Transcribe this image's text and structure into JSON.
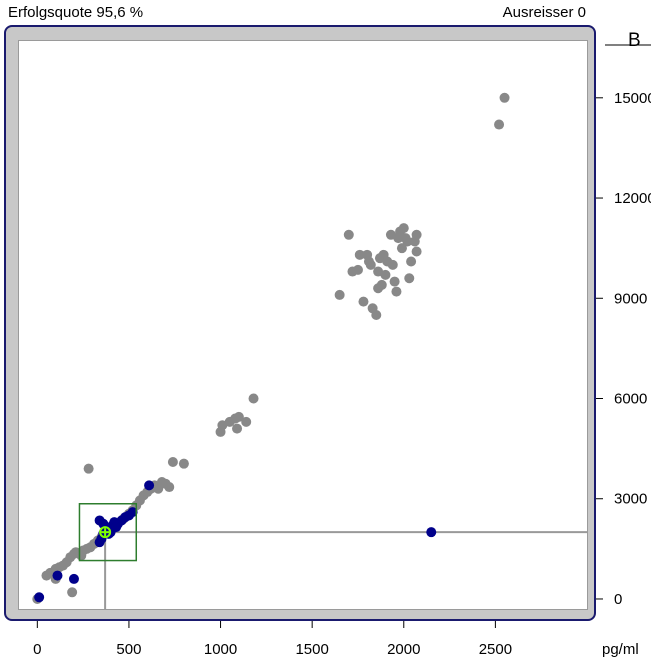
{
  "header": {
    "success_rate": "Erfolgsquote 95,6 %",
    "outliers": "Ausreisser 0",
    "panel_label": "B"
  },
  "colors": {
    "cluster_point": "#888888",
    "highlight_point": "#00008b",
    "target_box": "#2e7d2e",
    "target_marker": "#7fff00",
    "reference_line": "#999999",
    "frame": "#1a1a6e"
  },
  "chart_data": {
    "type": "scatter",
    "title": "",
    "xlabel": "",
    "x_unit": "pg/ml",
    "ylabel": "",
    "xlim": [
      -100,
      3000
    ],
    "ylim": [
      -300,
      16700
    ],
    "x_ticks": [
      "0",
      "500",
      "1000",
      "1500",
      "2000",
      "2500"
    ],
    "y_ticks": [
      "0",
      "3000",
      "6000",
      "9000",
      "12000",
      "15000"
    ],
    "target": {
      "x": 370,
      "y": 2000,
      "x_range": [
        230,
        540
      ],
      "y_range": [
        1150,
        2850
      ]
    },
    "series": [
      {
        "color": "gray",
        "points": [
          [
            0,
            0
          ],
          [
            50,
            700
          ],
          [
            70,
            780
          ],
          [
            100,
            900
          ],
          [
            120,
            950
          ],
          [
            140,
            1000
          ],
          [
            160,
            1100
          ],
          [
            180,
            1250
          ],
          [
            200,
            1350
          ],
          [
            210,
            1400
          ],
          [
            240,
            1300
          ],
          [
            250,
            1450
          ],
          [
            270,
            1500
          ],
          [
            290,
            1550
          ],
          [
            310,
            1650
          ],
          [
            330,
            1750
          ],
          [
            350,
            1850
          ],
          [
            420,
            2150
          ],
          [
            440,
            2250
          ],
          [
            470,
            2400
          ],
          [
            500,
            2550
          ],
          [
            520,
            2650
          ],
          [
            540,
            2800
          ],
          [
            560,
            2950
          ],
          [
            580,
            3100
          ],
          [
            600,
            3200
          ],
          [
            620,
            3300
          ],
          [
            640,
            3400
          ],
          [
            660,
            3300
          ],
          [
            680,
            3500
          ],
          [
            700,
            3450
          ],
          [
            720,
            3350
          ],
          [
            280,
            3900
          ],
          [
            740,
            4100
          ],
          [
            800,
            4050
          ],
          [
            190,
            200
          ],
          [
            100,
            600
          ],
          [
            1000,
            5000
          ],
          [
            1010,
            5200
          ],
          [
            1050,
            5300
          ],
          [
            1080,
            5400
          ],
          [
            1090,
            5100
          ],
          [
            1100,
            5450
          ],
          [
            1140,
            5300
          ],
          [
            1180,
            6000
          ],
          [
            1650,
            9100
          ],
          [
            1700,
            10900
          ],
          [
            1720,
            9800
          ],
          [
            1750,
            9850
          ],
          [
            1760,
            10300
          ],
          [
            1780,
            8900
          ],
          [
            1800,
            10300
          ],
          [
            1810,
            10100
          ],
          [
            1820,
            10000
          ],
          [
            1830,
            8700
          ],
          [
            1850,
            8500
          ],
          [
            1860,
            9300
          ],
          [
            1860,
            9800
          ],
          [
            1870,
            10200
          ],
          [
            1880,
            9400
          ],
          [
            1890,
            10300
          ],
          [
            1900,
            9700
          ],
          [
            1910,
            10100
          ],
          [
            1930,
            10900
          ],
          [
            1940,
            10000
          ],
          [
            1950,
            9500
          ],
          [
            1960,
            9200
          ],
          [
            1970,
            10800
          ],
          [
            1980,
            11000
          ],
          [
            1990,
            10500
          ],
          [
            2000,
            11100
          ],
          [
            2010,
            10800
          ],
          [
            2020,
            10700
          ],
          [
            2030,
            9600
          ],
          [
            2040,
            10100
          ],
          [
            2060,
            10700
          ],
          [
            2070,
            10900
          ],
          [
            2070,
            10400
          ],
          [
            2520,
            14200
          ],
          [
            2550,
            15000
          ]
        ]
      },
      {
        "color": "navy",
        "points": [
          [
            10,
            50
          ],
          [
            110,
            700
          ],
          [
            200,
            600
          ],
          [
            340,
            1700
          ],
          [
            350,
            1800
          ],
          [
            360,
            1950
          ],
          [
            370,
            2050
          ],
          [
            380,
            2100
          ],
          [
            390,
            1950
          ],
          [
            400,
            2000
          ],
          [
            410,
            2200
          ],
          [
            420,
            2300
          ],
          [
            430,
            2150
          ],
          [
            440,
            2250
          ],
          [
            460,
            2350
          ],
          [
            480,
            2450
          ],
          [
            500,
            2500
          ],
          [
            520,
            2600
          ],
          [
            340,
            2350
          ],
          [
            360,
            2250
          ],
          [
            610,
            3400
          ],
          [
            2150,
            2000
          ]
        ]
      }
    ]
  }
}
